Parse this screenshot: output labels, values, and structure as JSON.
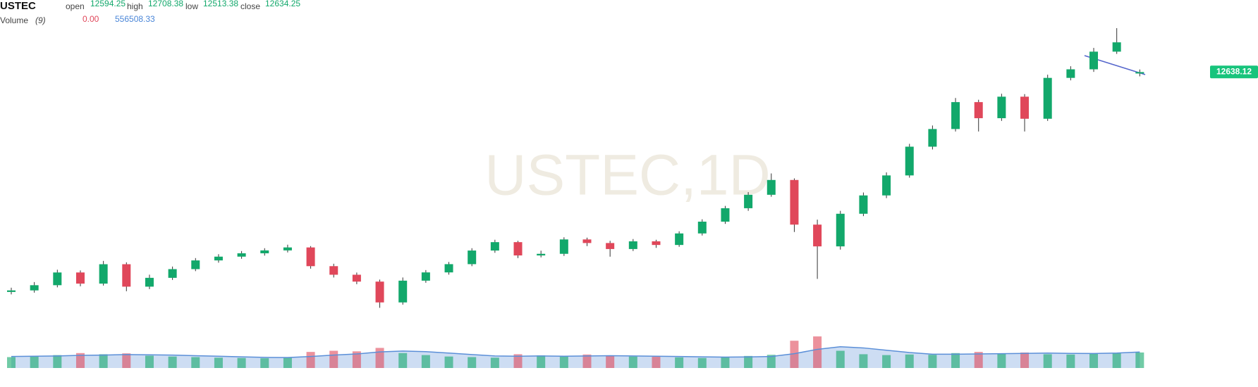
{
  "header": {
    "symbol": "USTEC",
    "open_label": "open",
    "high_label": "high",
    "low_label": "low",
    "close_label": "close",
    "volume_title": "Volume",
    "volume_period": "(9)",
    "volume_change": "0.00"
  },
  "chart_data": {
    "type": "candlestick",
    "watermark": "USTEC,1D",
    "open": [
      6400,
      6444,
      6591,
      6952,
      6636,
      7186,
      6550,
      6800,
      7047,
      7294,
      7401,
      7496,
      7578,
      7662,
      7131,
      6888,
      6693,
      6103,
      6720,
      6954,
      7188,
      7574,
      7812,
      7435,
      7481,
      7889,
      7787,
      7617,
      7835,
      7732,
      8059,
      8393,
      8774,
      9155,
      9575,
      8309,
      7692,
      8617,
      9137,
      9704,
      10519,
      11020,
      11783,
      11327,
      11937,
      11311,
      12470,
      12713,
      13214,
      12594.25
    ],
    "high": [
      6520,
      6680,
      7030,
      7010,
      7280,
      7240,
      6890,
      7120,
      7360,
      7470,
      7560,
      7640,
      7740,
      7700,
      7200,
      6950,
      6750,
      6810,
      7020,
      7250,
      7640,
      7880,
      7850,
      7570,
      7950,
      7940,
      7850,
      7900,
      7880,
      8120,
      8460,
      8840,
      9230,
      9760,
      9620,
      8450,
      8700,
      9220,
      9790,
      10600,
      11120,
      11900,
      11850,
      12020,
      12010,
      12560,
      12800,
      13320,
      13880,
      12708.38
    ],
    "low": [
      6330,
      6380,
      6530,
      6560,
      6580,
      6420,
      6480,
      6740,
      6990,
      7230,
      7340,
      7430,
      7520,
      7060,
      6810,
      6620,
      5950,
      6040,
      6660,
      6890,
      7130,
      7510,
      7360,
      7380,
      7420,
      7700,
      7400,
      7560,
      7650,
      7680,
      8000,
      8330,
      8700,
      9100,
      8100,
      6770,
      7600,
      8550,
      9060,
      9640,
      10440,
      10950,
      10950,
      11250,
      10950,
      11250,
      12400,
      12640,
      13150,
      12513.38
    ],
    "close": [
      6444,
      6591,
      6952,
      6636,
      7186,
      6550,
      6800,
      7047,
      7294,
      7401,
      7496,
      7578,
      7662,
      7131,
      6888,
      6693,
      6103,
      6720,
      6954,
      7188,
      7574,
      7812,
      7435,
      7481,
      7889,
      7787,
      7617,
      7835,
      7732,
      8059,
      8393,
      8774,
      9155,
      9575,
      8309,
      7692,
      8617,
      9137,
      9704,
      10519,
      11020,
      11783,
      11327,
      11937,
      11311,
      12470,
      12713,
      13214,
      13478,
      12634.25
    ],
    "up_color": "#12a86b",
    "down_color": "#e0475a",
    "ylim": [
      5600,
      14000
    ],
    "last_price": 12638.12,
    "last_price_color": "#17c47c",
    "volume": {
      "values": [
        380000,
        420000,
        450000,
        520000,
        480000,
        510000,
        430000,
        400000,
        380000,
        360000,
        350000,
        340000,
        370000,
        560000,
        600000,
        580000,
        700000,
        520000,
        450000,
        400000,
        380000,
        360000,
        480000,
        440000,
        400000,
        470000,
        420000,
        400000,
        390000,
        370000,
        350000,
        380000,
        420000,
        460000,
        950000,
        1100000,
        600000,
        480000,
        450000,
        470000,
        460000,
        520000,
        560000,
        500000,
        540000,
        480000,
        470000,
        500000,
        520000,
        540000
      ],
      "ma_values": [
        400000,
        410000,
        420000,
        440000,
        450000,
        470000,
        460000,
        450000,
        430000,
        410000,
        390000,
        370000,
        365000,
        400000,
        450000,
        490000,
        560000,
        590000,
        570000,
        520000,
        470000,
        420000,
        410000,
        420000,
        410000,
        420000,
        430000,
        420000,
        410000,
        400000,
        390000,
        380000,
        385000,
        400000,
        500000,
        650000,
        740000,
        700000,
        620000,
        540000,
        480000,
        480000,
        490000,
        500000,
        510000,
        520000,
        510000,
        505000,
        520000,
        556508.33
      ],
      "ylim": [
        0,
        1250000
      ],
      "ma_color": "#5b8fd8"
    }
  }
}
